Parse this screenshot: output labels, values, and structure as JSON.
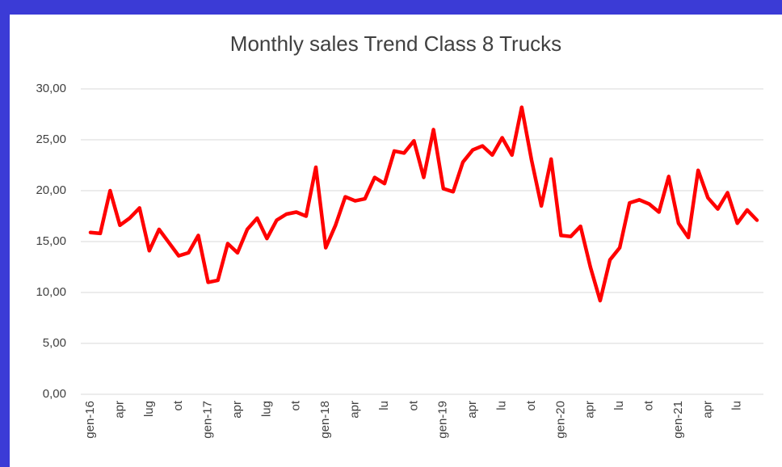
{
  "chart_data": {
    "type": "line",
    "title": "Monthly sales Trend Class 8 Trucks",
    "categories": [
      "gen-16",
      null,
      null,
      "apr",
      null,
      null,
      "lug",
      null,
      null,
      "ot",
      null,
      null,
      "gen-17",
      null,
      null,
      "apr",
      null,
      null,
      "lug",
      null,
      null,
      "ot",
      null,
      null,
      "gen-18",
      null,
      null,
      "apr",
      null,
      null,
      "lu",
      null,
      null,
      "ot",
      null,
      null,
      "gen-19",
      null,
      null,
      "apr",
      null,
      null,
      "lu",
      null,
      null,
      "ot",
      null,
      null,
      "gen-20",
      null,
      null,
      "apr",
      null,
      null,
      "lu",
      null,
      null,
      "ot",
      null,
      null,
      "gen-21",
      null,
      null,
      "apr",
      null,
      null,
      "lu",
      null,
      null
    ],
    "series": [
      {
        "name": "Class 8 Trucks",
        "color": "#ff0000",
        "values": [
          15.9,
          15.8,
          20.0,
          16.6,
          17.3,
          18.3,
          14.1,
          16.2,
          14.9,
          13.6,
          13.9,
          15.6,
          11.0,
          11.2,
          14.8,
          13.9,
          16.2,
          17.3,
          15.3,
          17.1,
          17.7,
          17.9,
          17.5,
          22.3,
          14.4,
          16.6,
          19.4,
          19.0,
          19.2,
          21.3,
          20.7,
          23.9,
          23.7,
          24.9,
          21.3,
          26.0,
          20.2,
          19.9,
          22.8,
          24.0,
          24.4,
          23.5,
          25.2,
          23.5,
          28.2,
          23.0,
          18.5,
          23.1,
          15.6,
          15.5,
          16.5,
          12.5,
          9.2,
          13.2,
          14.4,
          18.8,
          19.1,
          18.7,
          17.9,
          21.4,
          16.8,
          15.4,
          22.0,
          19.3,
          18.2,
          19.8,
          16.8,
          18.1,
          17.1
        ]
      }
    ],
    "ylim": [
      0,
      30
    ],
    "yticks": [
      {
        "value": 0,
        "label": "0,00"
      },
      {
        "value": 5,
        "label": "5,00"
      },
      {
        "value": 10,
        "label": "10,00"
      },
      {
        "value": 15,
        "label": "15,00"
      },
      {
        "value": 20,
        "label": "20,00"
      },
      {
        "value": 25,
        "label": "25,00"
      },
      {
        "value": 30,
        "label": "30,00"
      }
    ],
    "grid": true
  }
}
